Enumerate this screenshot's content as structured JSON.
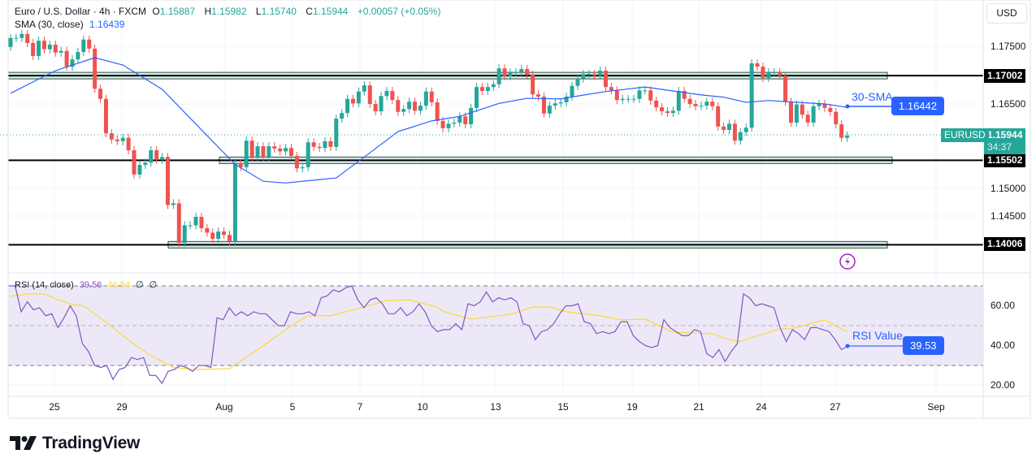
{
  "header": {
    "symbol_title": "Euro / U.S. Dollar · 4h · FXCM",
    "open_label": "O",
    "open": "1.15887",
    "high_label": "H",
    "high": "1.15982",
    "low_label": "L",
    "low": "1.15740",
    "close_label": "C",
    "close": "1.15944",
    "change": "+0.00057 (+0.05%)",
    "sma_label": "SMA (30, close)",
    "sma_value": "1.16439"
  },
  "currency_button": "USD",
  "price_axis": {
    "ticks": [
      "1.17500",
      "1.16500",
      "1.15000",
      "1.14500"
    ],
    "levels": [
      "1.17002",
      "1.15502",
      "1.14006"
    ],
    "current_price": "1.15944",
    "countdown": "34:37",
    "symbol_tag": "EURUSD"
  },
  "annotations": {
    "sma_text": "30-SMA",
    "sma_box": "1.16442",
    "rsi_text": "RSI Value",
    "rsi_box": "39.53"
  },
  "rsi": {
    "label": "RSI (14, close)",
    "value": "39.56",
    "ma_value": "46.94",
    "na1": "∅",
    "na2": "∅",
    "axis_ticks": [
      "60.00",
      "40.00",
      "20.00"
    ],
    "band": [
      30,
      70
    ]
  },
  "time_axis": [
    "25",
    "29",
    "Aug",
    "5",
    "7",
    "10",
    "13",
    "15",
    "19",
    "21",
    "24",
    "27",
    "Sep"
  ],
  "branding": "TradingView",
  "colors": {
    "up": "#26a69a",
    "down": "#ef5350",
    "sma": "#2962ff",
    "rsi": "#7e57c2",
    "rsi_ma": "#fdd835",
    "zone_border": "#1b5e20",
    "zone_fill": "#dbe6f5"
  },
  "chart_data": {
    "type": "candlestick",
    "timeframe": "4h",
    "first_open": 1.1751,
    "closes": [
      1.1767,
      1.1767,
      1.1774,
      1.1758,
      1.1735,
      1.1762,
      1.1747,
      1.1755,
      1.1741,
      1.1744,
      1.1716,
      1.1729,
      1.1742,
      1.1764,
      1.1748,
      1.1677,
      1.1659,
      1.1598,
      1.1587,
      1.1584,
      1.159,
      1.1568,
      1.1525,
      1.1542,
      1.1546,
      1.1568,
      1.1551,
      1.1556,
      1.1471,
      1.1474,
      1.1404,
      1.1435,
      1.1435,
      1.145,
      1.143,
      1.1422,
      1.1411,
      1.1424,
      1.1418,
      1.1407,
      1.1545,
      1.1538,
      1.1585,
      1.1556,
      1.1575,
      1.1556,
      1.1575,
      1.1571,
      1.1566,
      1.1572,
      1.1558,
      1.1536,
      1.1538,
      1.1582,
      1.1574,
      1.1572,
      1.1584,
      1.1574,
      1.1624,
      1.1634,
      1.1659,
      1.1651,
      1.1672,
      1.1683,
      1.165,
      1.1637,
      1.1664,
      1.1673,
      1.1657,
      1.1636,
      1.1641,
      1.1654,
      1.1638,
      1.1647,
      1.1672,
      1.1653,
      1.162,
      1.1607,
      1.1615,
      1.1617,
      1.1628,
      1.1614,
      1.1643,
      1.168,
      1.1673,
      1.168,
      1.1685,
      1.1713,
      1.1699,
      1.1706,
      1.1706,
      1.1712,
      1.1702,
      1.1667,
      1.1663,
      1.1633,
      1.1647,
      1.1651,
      1.1653,
      1.1663,
      1.1682,
      1.1695,
      1.1703,
      1.1703,
      1.17,
      1.1709,
      1.168,
      1.1674,
      1.1657,
      1.1659,
      1.1659,
      1.1659,
      1.1674,
      1.1674,
      1.1656,
      1.1644,
      1.1637,
      1.1634,
      1.1638,
      1.1673,
      1.1659,
      1.165,
      1.1646,
      1.1647,
      1.1654,
      1.1646,
      1.161,
      1.1604,
      1.1615,
      1.1585,
      1.16,
      1.1608,
      1.1722,
      1.1716,
      1.1696,
      1.1706,
      1.1706,
      1.17,
      1.1654,
      1.1617,
      1.1649,
      1.1631,
      1.1617,
      1.1646,
      1.165,
      1.1643,
      1.1636,
      1.1614,
      1.159,
      1.1594
    ],
    "sma30": [
      [
        0,
        1.1669
      ],
      [
        8,
        1.1709
      ],
      [
        15,
        1.1732
      ],
      [
        20,
        1.1719
      ],
      [
        27,
        1.1676
      ],
      [
        35,
        1.1594
      ],
      [
        40,
        1.1543
      ],
      [
        45,
        1.1513
      ],
      [
        49,
        1.151
      ],
      [
        58,
        1.1519
      ],
      [
        63,
        1.1556
      ],
      [
        69,
        1.1601
      ],
      [
        75,
        1.162
      ],
      [
        80,
        1.1628
      ],
      [
        87,
        1.1651
      ],
      [
        92,
        1.166
      ],
      [
        98,
        1.1659
      ],
      [
        101,
        1.1664
      ],
      [
        106,
        1.1672
      ],
      [
        113,
        1.168
      ],
      [
        118,
        1.1673
      ],
      [
        123,
        1.1666
      ],
      [
        127,
        1.1662
      ],
      [
        131,
        1.1653
      ],
      [
        135,
        1.1656
      ],
      [
        145,
        1.165
      ],
      [
        149,
        1.1644
      ]
    ],
    "support_resistance": [
      1.17002,
      1.15502,
      1.14006
    ],
    "price_range": [
      1.138,
      1.179
    ],
    "rsi_values": [
      70,
      70,
      57,
      62,
      58,
      59,
      55,
      56,
      49,
      54,
      60,
      55,
      41,
      37,
      30,
      29,
      30,
      23,
      28,
      29,
      34,
      33,
      34,
      25,
      25,
      21,
      27,
      28,
      30,
      29,
      27,
      30,
      30,
      29,
      54,
      53,
      59,
      55,
      57,
      55,
      57,
      56,
      56,
      53,
      50,
      50,
      57,
      56,
      56,
      57,
      55,
      64,
      65,
      68,
      67,
      69,
      70,
      63,
      59,
      63,
      64,
      61,
      56,
      56,
      59,
      55,
      57,
      61,
      57,
      50,
      47,
      48,
      48,
      51,
      48,
      61,
      60,
      62,
      67,
      62,
      64,
      63,
      64,
      62,
      51,
      50,
      43,
      47,
      48,
      51,
      56,
      60,
      60,
      61,
      52,
      51,
      46,
      47,
      46,
      47,
      52,
      52,
      45,
      42,
      40,
      39,
      40,
      53,
      49,
      47,
      45,
      45,
      48,
      47,
      36,
      34,
      38,
      32,
      37,
      41,
      66,
      64,
      60,
      61,
      60,
      59,
      49,
      42,
      48,
      46,
      43,
      49,
      49,
      48,
      47,
      43,
      38,
      39.56
    ],
    "rsi_ma": [
      [
        0,
        64.7
      ],
      [
        3,
        66
      ],
      [
        6,
        66
      ],
      [
        8,
        63.5
      ],
      [
        11,
        60.6
      ],
      [
        13,
        60
      ],
      [
        18,
        49.6
      ],
      [
        22,
        40.6
      ],
      [
        25,
        35
      ],
      [
        29,
        29
      ],
      [
        33,
        28
      ],
      [
        39,
        28.4
      ],
      [
        44,
        38
      ],
      [
        50,
        50
      ],
      [
        53,
        55
      ],
      [
        57,
        55
      ],
      [
        63,
        59.4
      ],
      [
        67,
        62.7
      ],
      [
        71,
        63
      ],
      [
        76,
        59.4
      ],
      [
        77,
        57.3
      ],
      [
        82,
        53.3
      ],
      [
        89,
        55.7
      ],
      [
        93,
        59.4
      ],
      [
        96,
        59.4
      ],
      [
        99,
        57
      ],
      [
        105,
        55
      ],
      [
        109,
        52.9
      ],
      [
        113,
        53.3
      ],
      [
        118,
        46.7
      ],
      [
        125,
        45.9
      ],
      [
        128,
        43
      ],
      [
        130,
        42
      ],
      [
        132,
        44
      ],
      [
        137,
        48.4
      ],
      [
        139,
        48.4
      ],
      [
        145,
        52.9
      ],
      [
        149,
        46.94
      ]
    ],
    "rsi_range": [
      14,
      80
    ]
  }
}
